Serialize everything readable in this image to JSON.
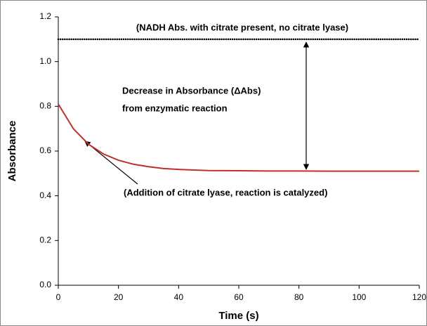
{
  "chart_data": {
    "type": "line",
    "x_label": "Time (s)",
    "y_label": "Absorbance",
    "xlim": [
      0,
      120
    ],
    "xticks": [
      0,
      20,
      40,
      60,
      80,
      100,
      120
    ],
    "ylim": [
      0,
      1.2
    ],
    "yticks": [
      {
        "value": 0,
        "label": "0.0"
      },
      0.2,
      0.4,
      0.6,
      0.8,
      {
        "value": 1,
        "label": "1.0"
      },
      1.2
    ],
    "grid": false,
    "series": [
      {
        "color": "#000000",
        "style": "dotted",
        "x": [
          0,
          120
        ],
        "values": [
          1.1,
          1.1
        ]
      },
      {
        "color": "#c0302a",
        "style": "solid",
        "x": [
          0,
          5,
          10,
          15,
          20,
          25,
          30,
          35,
          40,
          45,
          50,
          60,
          70,
          80,
          90,
          100,
          110,
          120
        ],
        "values": [
          0.81,
          0.7,
          0.631,
          0.587,
          0.559,
          0.541,
          0.53,
          0.522,
          0.518,
          0.515,
          0.513,
          0.512,
          0.511,
          0.511,
          0.51,
          0.51,
          0.51,
          0.51
        ]
      }
    ],
    "annotations": [
      "(NADH Abs. with citrate present, no citrate lyase)",
      "Decrease in Absorbance (ΔAbs)",
      "from enzymatic reaction",
      "(Addition of citrate lyase, reaction is catalyzed)"
    ]
  }
}
